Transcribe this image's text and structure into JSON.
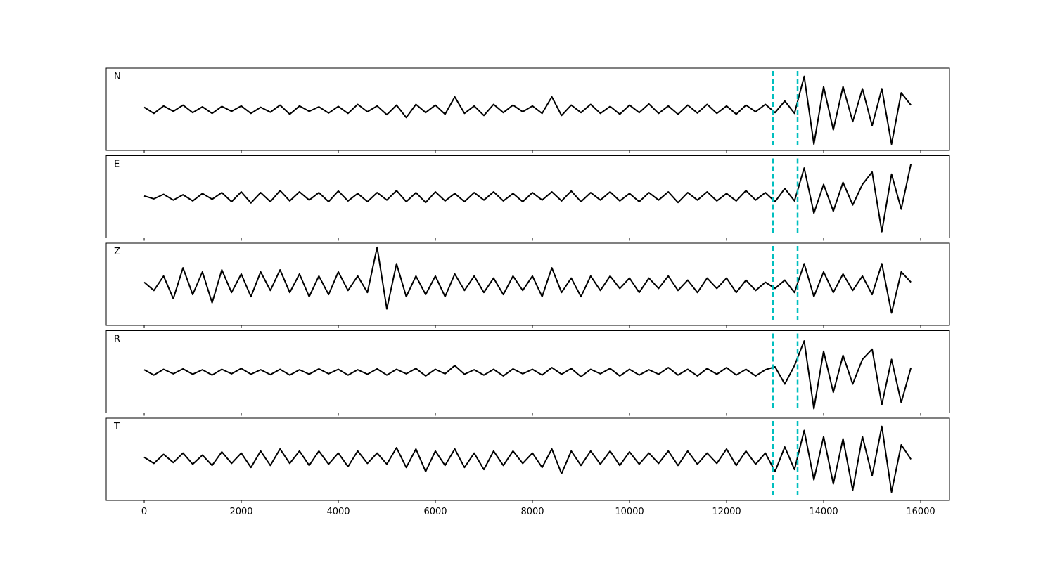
{
  "chart_data": {
    "type": "line",
    "subplots": true,
    "x": [
      0,
      200,
      400,
      600,
      800,
      1000,
      1200,
      1400,
      1600,
      1800,
      2000,
      2200,
      2400,
      2600,
      2800,
      3000,
      3200,
      3400,
      3600,
      3800,
      4000,
      4200,
      4400,
      4600,
      4800,
      5000,
      5200,
      5400,
      5600,
      5800,
      6000,
      6200,
      6400,
      6600,
      6800,
      7000,
      7200,
      7400,
      7600,
      7800,
      8000,
      8200,
      8400,
      8600,
      8800,
      9000,
      9200,
      9400,
      9600,
      9800,
      10000,
      10200,
      10400,
      10600,
      10800,
      11000,
      11200,
      11400,
      11600,
      11800,
      12000,
      12200,
      12400,
      12600,
      12800,
      13000,
      13200,
      13400,
      13600,
      13800,
      14000,
      14200,
      14400,
      14600,
      14800,
      15000,
      15200,
      15400,
      15600,
      15800
    ],
    "xlim": [
      -783,
      16594
    ],
    "ylim": [
      -1,
      1
    ],
    "xticks": [
      0,
      2000,
      4000,
      6000,
      8000,
      10000,
      12000,
      14000,
      16000
    ],
    "vlines": [
      12957,
      13464
    ],
    "vline_color": "#00bfbf",
    "series": [
      {
        "name": "N",
        "color": "#000000",
        "values": [
          0.05,
          -0.1,
          0.08,
          -0.05,
          0.1,
          -0.08,
          0.06,
          -0.1,
          0.07,
          -0.05,
          0.08,
          -0.1,
          0.05,
          -0.07,
          0.1,
          -0.12,
          0.08,
          -0.05,
          0.06,
          -0.09,
          0.07,
          -0.1,
          0.12,
          -0.06,
          0.08,
          -0.13,
          0.1,
          -0.2,
          0.12,
          -0.08,
          0.1,
          -0.12,
          0.3,
          -0.1,
          0.08,
          -0.15,
          0.12,
          -0.08,
          0.1,
          -0.06,
          0.08,
          -0.1,
          0.3,
          -0.15,
          0.1,
          -0.08,
          0.12,
          -0.1,
          0.07,
          -0.12,
          0.1,
          -0.08,
          0.13,
          -0.1,
          0.08,
          -0.12,
          0.1,
          -0.09,
          0.12,
          -0.1,
          0.08,
          -0.12,
          0.1,
          -0.06,
          0.12,
          -0.08,
          0.2,
          -0.1,
          0.8,
          -0.85,
          0.55,
          -0.5,
          0.55,
          -0.3,
          0.5,
          -0.4,
          0.5,
          -0.85,
          0.4,
          0.1
        ]
      },
      {
        "name": "E",
        "color": "#000000",
        "values": [
          0.02,
          -0.05,
          0.06,
          -0.08,
          0.05,
          -0.1,
          0.08,
          -0.06,
          0.1,
          -0.12,
          0.12,
          -0.15,
          0.1,
          -0.12,
          0.15,
          -0.1,
          0.12,
          -0.08,
          0.1,
          -0.12,
          0.14,
          -0.1,
          0.08,
          -0.12,
          0.1,
          -0.08,
          0.15,
          -0.12,
          0.1,
          -0.14,
          0.12,
          -0.1,
          0.08,
          -0.12,
          0.1,
          -0.08,
          0.12,
          -0.1,
          0.08,
          -0.12,
          0.1,
          -0.08,
          0.12,
          -0.1,
          0.14,
          -0.12,
          0.1,
          -0.08,
          0.12,
          -0.1,
          0.08,
          -0.12,
          0.1,
          -0.08,
          0.12,
          -0.14,
          0.1,
          -0.08,
          0.12,
          -0.1,
          0.08,
          -0.1,
          0.15,
          -0.08,
          0.1,
          -0.12,
          0.2,
          -0.1,
          0.7,
          -0.4,
          0.3,
          -0.35,
          0.35,
          -0.2,
          0.3,
          0.6,
          -0.85,
          0.55,
          -0.3,
          0.8
        ]
      },
      {
        "name": "Z",
        "color": "#000000",
        "values": [
          0.05,
          -0.15,
          0.2,
          -0.35,
          0.4,
          -0.25,
          0.3,
          -0.45,
          0.35,
          -0.2,
          0.25,
          -0.3,
          0.3,
          -0.15,
          0.35,
          -0.2,
          0.25,
          -0.3,
          0.2,
          -0.25,
          0.3,
          -0.15,
          0.2,
          -0.2,
          0.9,
          -0.6,
          0.5,
          -0.3,
          0.2,
          -0.25,
          0.2,
          -0.3,
          0.25,
          -0.15,
          0.2,
          -0.2,
          0.15,
          -0.25,
          0.2,
          -0.15,
          0.2,
          -0.3,
          0.4,
          -0.2,
          0.15,
          -0.3,
          0.2,
          -0.15,
          0.2,
          -0.1,
          0.15,
          -0.2,
          0.15,
          -0.1,
          0.2,
          -0.15,
          0.1,
          -0.2,
          0.15,
          -0.1,
          0.15,
          -0.2,
          0.1,
          -0.15,
          0.05,
          -0.1,
          0.1,
          -0.2,
          0.5,
          -0.3,
          0.3,
          -0.2,
          0.25,
          -0.15,
          0.2,
          -0.25,
          0.5,
          -0.7,
          0.3,
          0.05
        ]
      },
      {
        "name": "R",
        "color": "#000000",
        "values": [
          0.05,
          -0.08,
          0.06,
          -0.05,
          0.07,
          -0.06,
          0.05,
          -0.08,
          0.06,
          -0.05,
          0.08,
          -0.06,
          0.05,
          -0.07,
          0.06,
          -0.08,
          0.05,
          -0.06,
          0.07,
          -0.05,
          0.06,
          -0.08,
          0.05,
          -0.06,
          0.07,
          -0.08,
          0.06,
          -0.05,
          0.08,
          -0.1,
          0.06,
          -0.05,
          0.15,
          -0.06,
          0.05,
          -0.08,
          0.06,
          -0.1,
          0.07,
          -0.05,
          0.06,
          -0.08,
          0.1,
          -0.06,
          0.08,
          -0.12,
          0.06,
          -0.05,
          0.08,
          -0.1,
          0.06,
          -0.08,
          0.05,
          -0.06,
          0.1,
          -0.08,
          0.06,
          -0.1,
          0.08,
          -0.06,
          0.1,
          -0.08,
          0.06,
          -0.1,
          0.05,
          0.12,
          -0.3,
          0.15,
          0.75,
          -0.9,
          0.5,
          -0.5,
          0.4,
          -0.3,
          0.3,
          0.55,
          -0.8,
          0.3,
          -0.75,
          0.1
        ]
      },
      {
        "name": "T",
        "color": "#000000",
        "values": [
          0.05,
          -0.1,
          0.12,
          -0.08,
          0.15,
          -0.12,
          0.1,
          -0.15,
          0.18,
          -0.1,
          0.15,
          -0.2,
          0.2,
          -0.15,
          0.25,
          -0.1,
          0.2,
          -0.15,
          0.2,
          -0.12,
          0.15,
          -0.18,
          0.2,
          -0.1,
          0.15,
          -0.12,
          0.28,
          -0.2,
          0.25,
          -0.3,
          0.2,
          -0.15,
          0.25,
          -0.2,
          0.15,
          -0.25,
          0.2,
          -0.15,
          0.2,
          -0.1,
          0.15,
          -0.2,
          0.25,
          -0.35,
          0.2,
          -0.15,
          0.2,
          -0.12,
          0.2,
          -0.15,
          0.18,
          -0.12,
          0.15,
          -0.1,
          0.2,
          -0.15,
          0.2,
          -0.12,
          0.15,
          -0.1,
          0.25,
          -0.15,
          0.2,
          -0.12,
          0.15,
          -0.3,
          0.3,
          -0.25,
          0.7,
          -0.5,
          0.55,
          -0.6,
          0.5,
          -0.75,
          0.55,
          -0.4,
          0.8,
          -0.8,
          0.35,
          0.0
        ]
      }
    ]
  }
}
